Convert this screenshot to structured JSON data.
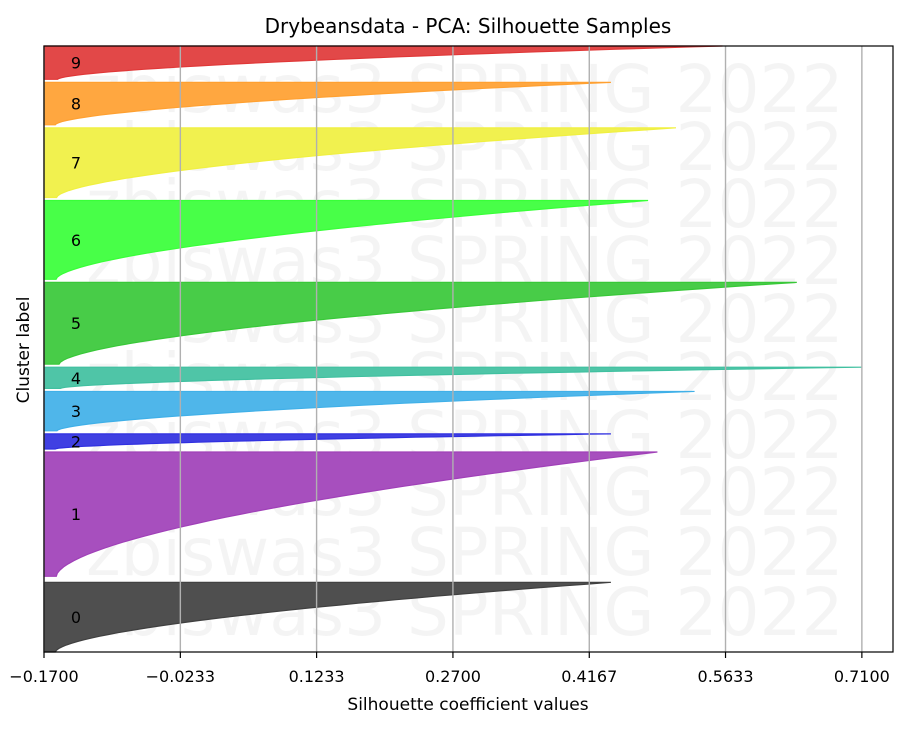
{
  "chart_data": {
    "type": "area",
    "title": "Drybeansdata - PCA: Silhouette Samples",
    "xlabel": "Silhouette coefficient values",
    "ylabel": "Cluster label",
    "xlim": [
      -0.17,
      0.7435
    ],
    "x_ticks": [
      -0.17,
      -0.0233,
      0.1233,
      0.27,
      0.4167,
      0.5633,
      0.71
    ],
    "x_tick_labels": [
      "−0.1700",
      "−0.0233",
      "0.1233",
      "0.2700",
      "0.4167",
      "0.5633",
      "0.7100"
    ],
    "grid": "vertical",
    "watermark": "zbiswas3 SPRING 2022",
    "clusters": [
      {
        "label": "0",
        "color": "#404040",
        "max_value": 0.44,
        "span": [
          0.0,
          0.115
        ]
      },
      {
        "label": "1",
        "color": "#a040b8",
        "max_value": 0.49,
        "span": [
          0.125,
          0.33
        ]
      },
      {
        "label": "2",
        "color": "#3030e0",
        "max_value": 0.44,
        "span": [
          0.335,
          0.36
        ]
      },
      {
        "label": "3",
        "color": "#40b0e8",
        "max_value": 0.53,
        "span": [
          0.365,
          0.43
        ]
      },
      {
        "label": "4",
        "color": "#40c0a0",
        "max_value": 0.71,
        "span": [
          0.435,
          0.47
        ]
      },
      {
        "label": "5",
        "color": "#38c838",
        "max_value": 0.64,
        "span": [
          0.475,
          0.61
        ]
      },
      {
        "label": "6",
        "color": "#38ff38",
        "max_value": 0.48,
        "span": [
          0.615,
          0.745
        ]
      },
      {
        "label": "7",
        "color": "#f0f040",
        "max_value": 0.51,
        "span": [
          0.75,
          0.865
        ]
      },
      {
        "label": "8",
        "color": "#ffa030",
        "max_value": 0.44,
        "span": [
          0.87,
          0.94
        ]
      },
      {
        "label": "9",
        "color": "#e03838",
        "max_value": 0.56,
        "span": [
          0.945,
          1.0
        ]
      }
    ]
  }
}
